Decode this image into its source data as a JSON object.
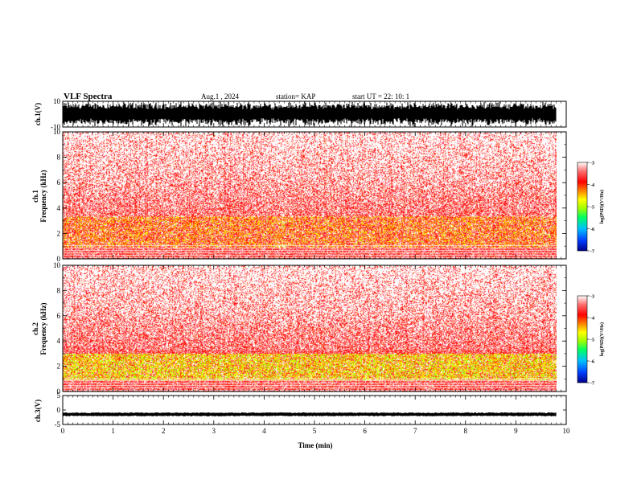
{
  "header": {
    "title": "VLF Spectra",
    "date": "Aug.1 , 2024",
    "station": "station= KAP",
    "start": "start UT = 22: 10: 1"
  },
  "chart_data": [
    {
      "type": "line",
      "panel": "waveform-ch1",
      "ylabel": "ch.1(V)",
      "ylim": [
        -10,
        10
      ],
      "yticks": [
        "10",
        "-10"
      ],
      "xlim": [
        0,
        10
      ],
      "color": "#000000"
    },
    {
      "type": "heatmap",
      "panel": "spectrogram-ch1",
      "ylabel": "ch.1\nFrequency (kHz)",
      "ylim": [
        0,
        10
      ],
      "yticks": [
        "10",
        "8",
        "6",
        "4",
        "2",
        "0"
      ],
      "xlim": [
        0,
        10
      ],
      "colorbar": {
        "label": "log(PSD)(V²/Hz)",
        "range": [
          -7,
          -3
        ],
        "ticks": [
          "-3",
          "-4",
          "-5",
          "-6",
          "-7"
        ],
        "colors": [
          "#00008b",
          "#0040ff",
          "#00c0ff",
          "#00ff60",
          "#a0ff00",
          "#ffff00",
          "#ff8000",
          "#ff0000",
          "#ff6060",
          "#ffffff"
        ]
      },
      "bands": [
        {
          "freq_khz": [
            0,
            1.0
          ],
          "dominant": "red"
        },
        {
          "freq_khz": [
            1.0,
            3.3
          ],
          "dominant": "red-yellow"
        },
        {
          "freq_khz": [
            3.3,
            6
          ],
          "dominant": "red"
        },
        {
          "freq_khz": [
            6,
            10
          ],
          "dominant": "light-red"
        }
      ]
    },
    {
      "type": "heatmap",
      "panel": "spectrogram-ch2",
      "ylabel": "ch.2\nFrequency (kHz)",
      "ylim": [
        0,
        10
      ],
      "yticks": [
        "10",
        "8",
        "6",
        "4",
        "2",
        "0"
      ],
      "xlim": [
        0,
        10
      ],
      "colorbar": {
        "label": "log(PSD)(V²/Hz)",
        "range": [
          -7,
          -3
        ],
        "ticks": [
          "-3",
          "-4",
          "-5",
          "-6",
          "-7"
        ],
        "colors": [
          "#00008b",
          "#0040ff",
          "#00c0ff",
          "#00ff60",
          "#a0ff00",
          "#ffff00",
          "#ff8000",
          "#ff0000",
          "#ff6060",
          "#ffffff"
        ]
      },
      "bands": [
        {
          "freq_khz": [
            0,
            0.8
          ],
          "dominant": "red"
        },
        {
          "freq_khz": [
            0.8,
            3.0
          ],
          "dominant": "yellow-green"
        },
        {
          "freq_khz": [
            3.0,
            6
          ],
          "dominant": "red"
        },
        {
          "freq_khz": [
            6,
            10
          ],
          "dominant": "light-red"
        }
      ]
    },
    {
      "type": "line",
      "panel": "waveform-ch3",
      "ylabel": "ch.3(V)",
      "ylim": [
        -5,
        5
      ],
      "yticks": [
        "5",
        "0",
        "-5"
      ],
      "xlim": [
        0,
        10
      ],
      "color": "#000000",
      "mean_level": -1.5
    }
  ],
  "xaxis": {
    "label": "Time (min)",
    "ticks": [
      "0",
      "1",
      "2",
      "3",
      "4",
      "5",
      "6",
      "7",
      "8",
      "9",
      "10"
    ],
    "range": [
      0,
      10
    ]
  }
}
